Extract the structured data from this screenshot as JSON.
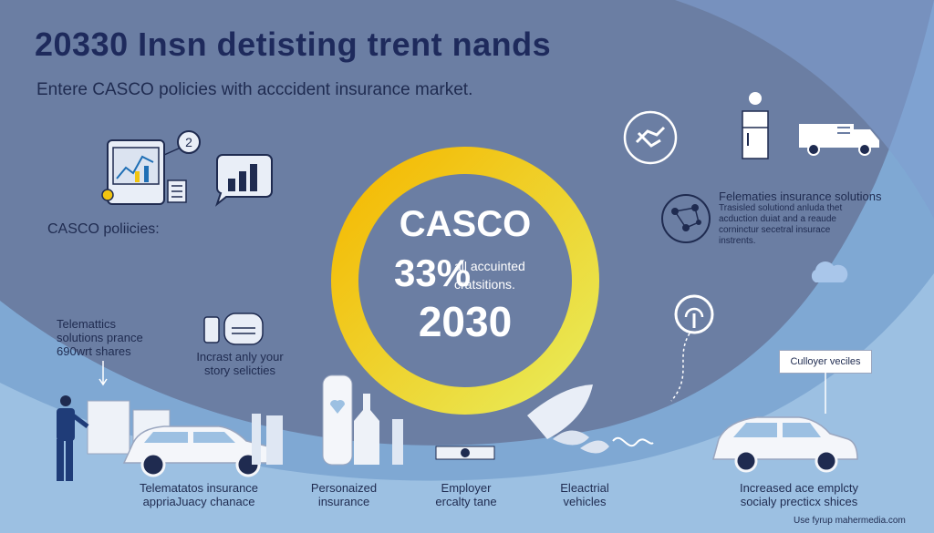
{
  "header": {
    "title": "20330 Insn detisting trent nands",
    "subtitle": "Entere CASCO policies with acccident insurance market."
  },
  "left": {
    "casco_label": "CASCO poliicies:",
    "badge": "2",
    "telematics_note": [
      "Telemattics",
      "solutions prance",
      "690wrt shares"
    ],
    "story_note": [
      "Incrast anly your",
      "story selicties"
    ]
  },
  "ring": {
    "word": "CASCO",
    "percent": "33%",
    "note": [
      "all accuinted",
      "cratsitions."
    ],
    "year": "2030",
    "colors": {
      "outer": "#f1c40f",
      "inner": "#e6e94f",
      "fill": "#6b7ea3"
    }
  },
  "right": {
    "telematics_heading": "Felematies insurance solutions",
    "telematics_body": [
      "Trasisled solutiond anluda thet",
      "acduction duiat and a reaude",
      "corninctur secetral insurace",
      "instrents."
    ],
    "callout": "Culloyer veciles"
  },
  "captions": [
    [
      "Telematatos insurance",
      "appriaJuacy chanace"
    ],
    [
      "Personaized",
      "insurance"
    ],
    [
      "Employer",
      "ercalty tane"
    ],
    [
      "Eleactrial",
      "vehicles"
    ],
    [
      "Increased ace emplcty",
      "socialy precticx shices"
    ]
  ],
  "footer": {
    "source": "Use fyrup mahermedia.com"
  },
  "icons": [
    "tablet-chart-icon",
    "speech-bubble-chart-icon",
    "document-icon",
    "coin-icon",
    "handshake-icon",
    "fridge-icon",
    "van-icon",
    "network-icon",
    "cloud-icon",
    "fingerprint-icon",
    "car-icon",
    "person-icon",
    "phone-icon",
    "leaf-icon"
  ]
}
